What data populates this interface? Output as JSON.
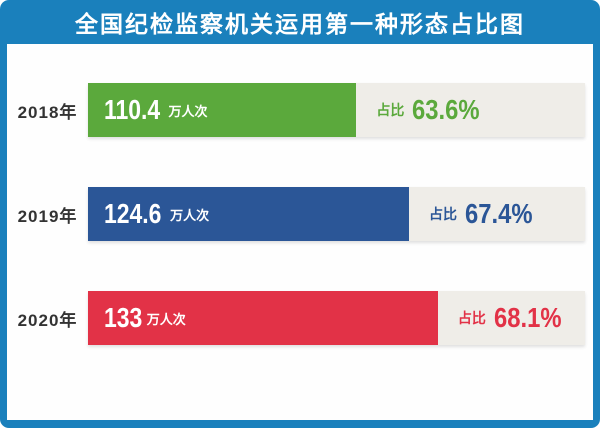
{
  "title": "全国纪检监察机关运用第一种形态占比图",
  "colors": {
    "frame_blue": "#1A80BC",
    "track_gray": "#EFEDE8",
    "label_dark": "#333333",
    "bar_green": "#5BA93C",
    "bar_navy": "#2B5697",
    "bar_red": "#E23247",
    "text_white": "#FFFFFF"
  },
  "chart_data": {
    "type": "bar",
    "orientation": "horizontal",
    "title": "全国纪检监察机关运用第一种形态占比图",
    "categories": [
      "2018年",
      "2019年",
      "2020年"
    ],
    "series": [
      {
        "name": "运用人次(万人次)",
        "values": [
          110.4,
          124.6,
          133
        ]
      },
      {
        "name": "占比(%)",
        "values": [
          63.6,
          67.4,
          68.1
        ]
      }
    ],
    "grid": false,
    "legend": "none",
    "value_unit_label": "万人次",
    "pct_prefix_label": "占比"
  },
  "rows": [
    {
      "year": "2018年",
      "value": "110.4",
      "unit": "万人次",
      "pct_label": "占比",
      "pct_value": "63.6%",
      "color": "#5BA93C",
      "bar_width_pct": 54.0
    },
    {
      "year": "2019年",
      "value": "124.6",
      "unit": "万人次",
      "pct_label": "占比",
      "pct_value": "67.4%",
      "color": "#2B5697",
      "bar_width_pct": 64.6
    },
    {
      "year": "2020年",
      "value": "133",
      "unit": "万人次",
      "pct_label": "占比",
      "pct_value": "68.1%",
      "color": "#E23247",
      "bar_width_pct": 70.4
    }
  ]
}
